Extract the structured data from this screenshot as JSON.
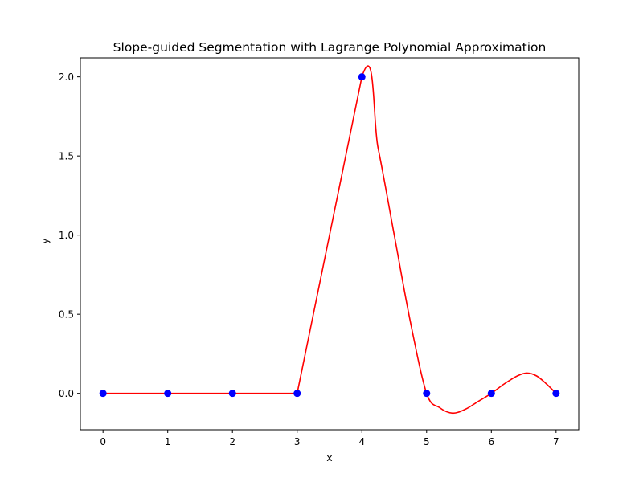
{
  "chart_data": {
    "type": "line",
    "title": "Slope-guided Segmentation with Lagrange Polynomial Approximation",
    "xlabel": "x",
    "ylabel": "y",
    "xlim": [
      -0.35,
      7.35
    ],
    "ylim": [
      -0.23,
      2.12
    ],
    "x_ticks": [
      0,
      1,
      2,
      3,
      4,
      5,
      6,
      7
    ],
    "x_tick_labels": [
      "0",
      "1",
      "2",
      "3",
      "4",
      "5",
      "6",
      "7"
    ],
    "y_ticks": [
      0.0,
      0.5,
      1.0,
      1.5,
      2.0
    ],
    "y_tick_labels": [
      "0.0",
      "0.5",
      "1.0",
      "1.5",
      "2.0"
    ],
    "grid": false,
    "legend": "none",
    "series": [
      {
        "style": "markers",
        "color": "#0000ff",
        "x": [
          0,
          1,
          2,
          3,
          4,
          5,
          6,
          7
        ],
        "y": [
          0,
          0,
          0,
          0,
          2,
          0,
          0,
          0
        ]
      },
      {
        "style": "line",
        "color": "#ff0000",
        "x": [
          0,
          1,
          2,
          3,
          4,
          4.25,
          4.5,
          4.75,
          5,
          5.2,
          5.4,
          5.6,
          5.8,
          6,
          6.2,
          6.4,
          6.55,
          6.7,
          6.85,
          7
        ],
        "y": [
          0,
          0,
          0,
          0,
          2,
          1.55,
          1.0,
          0.45,
          0,
          -0.09,
          -0.125,
          -0.1,
          -0.05,
          0,
          0.06,
          0.11,
          0.128,
          0.11,
          0.06,
          0
        ]
      }
    ]
  }
}
